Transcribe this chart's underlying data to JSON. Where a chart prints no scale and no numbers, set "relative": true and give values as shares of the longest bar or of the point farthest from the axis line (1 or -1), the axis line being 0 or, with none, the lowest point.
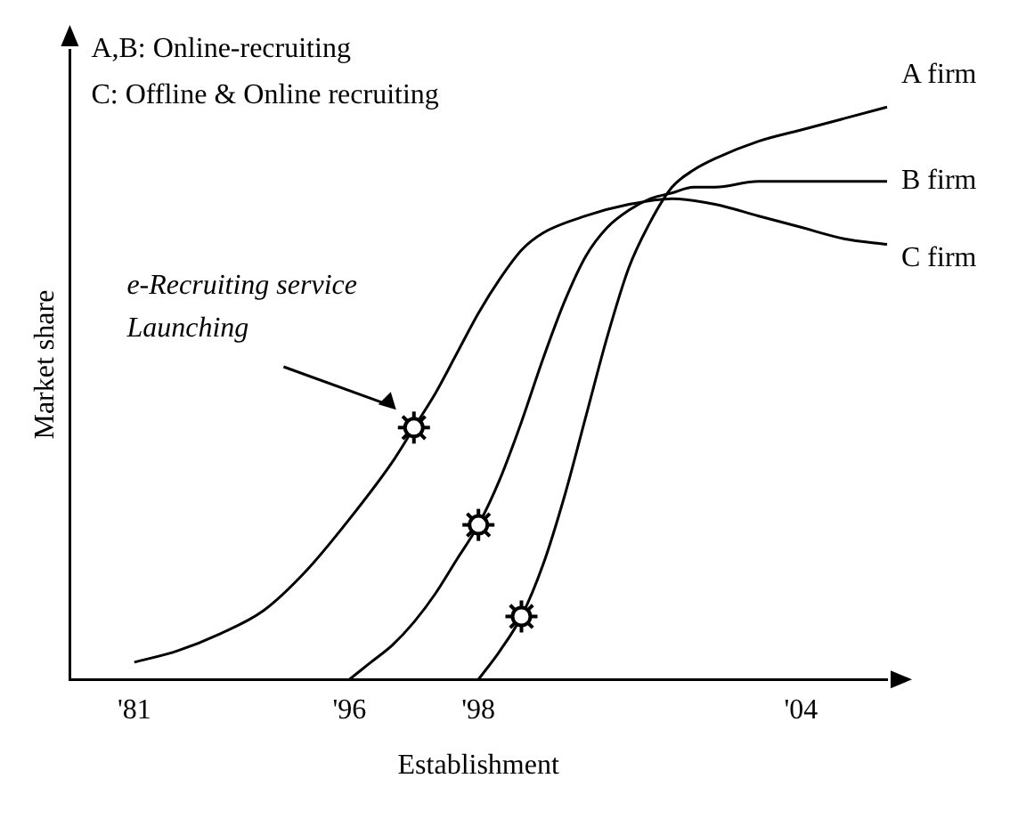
{
  "chart_data": {
    "type": "line",
    "relative": true,
    "xlabel": "Establishment",
    "ylabel": "Market share",
    "categories": [
      null,
      null,
      null,
      "'81",
      null,
      null,
      null,
      null,
      null,
      null,
      null,
      null,
      null,
      "'96",
      null,
      null,
      null,
      null,
      null,
      "'98",
      null,
      null,
      null,
      null,
      null,
      null,
      null,
      null,
      null,
      null,
      null,
      null,
      null,
      null,
      "'04",
      null,
      null,
      null,
      null
    ],
    "series": [
      {
        "name": "A firm",
        "color": "#000000",
        "values": [
          null,
          null,
          null,
          null,
          null,
          null,
          null,
          null,
          null,
          null,
          null,
          null,
          null,
          null,
          null,
          null,
          null,
          null,
          null,
          0,
          0.05,
          0.11,
          0.2,
          0.32,
          0.46,
          0.6,
          0.72,
          0.8,
          0.86,
          0.89,
          0.91,
          null,
          0.94,
          null,
          0.96,
          null,
          0.98,
          null,
          1
        ]
      },
      {
        "name": "B firm",
        "color": "#000000",
        "values": [
          null,
          null,
          null,
          null,
          null,
          null,
          null,
          null,
          null,
          null,
          null,
          null,
          null,
          0,
          0.03,
          0.06,
          0.1,
          0.15,
          0.21,
          0.27,
          0.35,
          0.45,
          0.56,
          0.66,
          0.74,
          0.79,
          0.82,
          0.84,
          0.85,
          0.86,
          0.86,
          null,
          0.87,
          null,
          0.87,
          null,
          null,
          null,
          0.87
        ]
      },
      {
        "name": "C firm",
        "color": "#000000",
        "values": [
          null,
          null,
          null,
          0.03,
          null,
          0.05,
          null,
          0.08,
          null,
          0.12,
          null,
          0.19,
          null,
          0.28,
          null,
          0.38,
          0.44,
          0.5,
          0.57,
          0.64,
          0.7,
          0.75,
          0.78,
          null,
          0.81,
          null,
          0.83,
          null,
          0.84,
          null,
          0.83,
          null,
          0.81,
          null,
          0.79,
          null,
          0.77,
          null,
          0.76
        ]
      }
    ],
    "annotations": [
      "A,B: Online-recruiting",
      "C: Offline & Online recruiting",
      "e-Recruiting service\nLaunching"
    ],
    "legend": false,
    "grid": false,
    "marker": "none",
    "line_style": "solid"
  }
}
